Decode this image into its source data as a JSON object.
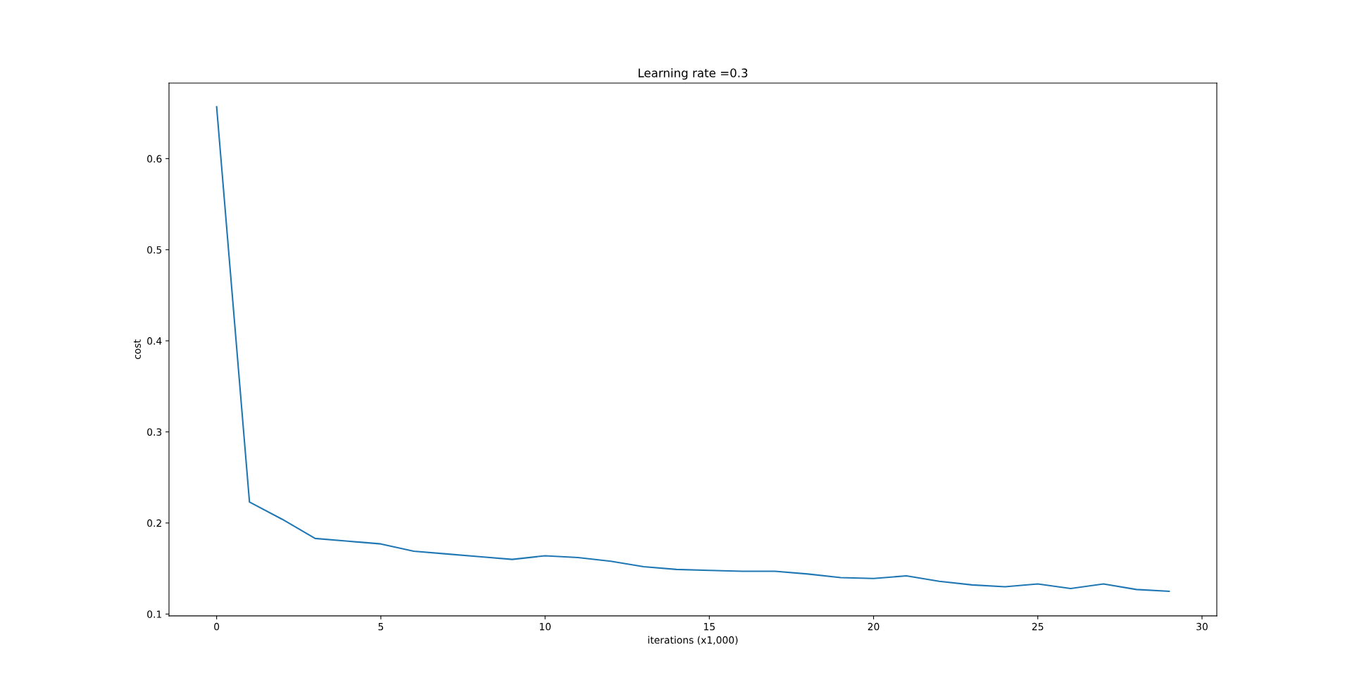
{
  "chart_data": {
    "type": "line",
    "title": "Learning rate =0.3",
    "xlabel": "iterations (x1,000)",
    "ylabel": "cost",
    "x": [
      0,
      1,
      2,
      3,
      4,
      5,
      6,
      7,
      8,
      9,
      10,
      11,
      12,
      13,
      14,
      15,
      16,
      17,
      18,
      19,
      20,
      21,
      22,
      23,
      24,
      25,
      26,
      27,
      28,
      29
    ],
    "series": [
      {
        "color": "#1f77b4",
        "values": [
          0.657,
          0.223,
          0.204,
          0.183,
          0.18,
          0.177,
          0.169,
          0.166,
          0.163,
          0.16,
          0.164,
          0.162,
          0.158,
          0.152,
          0.149,
          0.148,
          0.147,
          0.147,
          0.144,
          0.14,
          0.139,
          0.142,
          0.136,
          0.132,
          0.13,
          0.133,
          0.128,
          0.133,
          0.127,
          0.125
        ]
      }
    ],
    "xlim": [
      -1.45,
      30.45
    ],
    "ylim": [
      0.098,
      0.683
    ],
    "xticks": [
      0,
      5,
      10,
      15,
      20,
      25,
      30
    ],
    "yticks": [
      0.1,
      0.2,
      0.3,
      0.4,
      0.5,
      0.6
    ],
    "grid": false,
    "legend": false,
    "marker": "none",
    "line_style": "solid"
  }
}
